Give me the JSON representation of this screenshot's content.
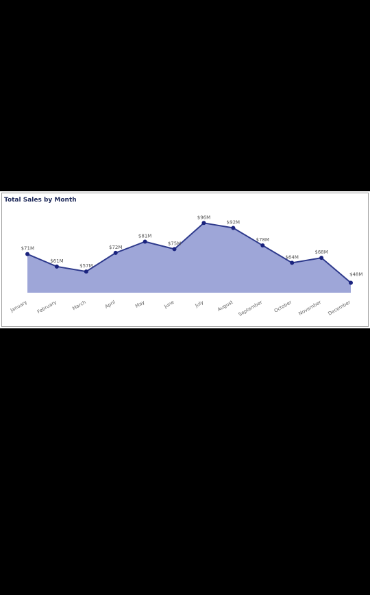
{
  "chart_data": {
    "type": "area",
    "title": "Total Sales by Month",
    "xlabel": "",
    "ylabel": "",
    "categories": [
      "January",
      "February",
      "March",
      "April",
      "May",
      "June",
      "July",
      "August",
      "September",
      "October",
      "November",
      "December"
    ],
    "values": [
      71,
      61,
      57,
      72,
      81,
      75,
      96,
      92,
      78,
      64,
      68,
      48
    ],
    "data_labels": [
      "$71M",
      "$61M",
      "$57M",
      "$72M",
      "$81M",
      "$75M",
      "$96M",
      "$92M",
      "$78M",
      "$64M",
      "$68M",
      "$48M"
    ],
    "ylim": [
      40,
      100
    ],
    "grid": false,
    "legend": "none",
    "colors": {
      "fill": "#9ea6d8",
      "line": "#2e3a8c",
      "marker": "#1a237e"
    }
  }
}
